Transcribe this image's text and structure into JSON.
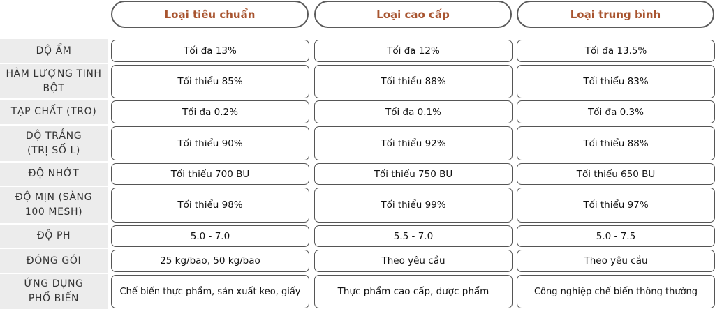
{
  "columns": [
    "Loại tiêu chuẩn",
    "Loại cao cấp",
    "Loại trung bình"
  ],
  "rows": [
    {
      "label": "ĐỘ ẨM",
      "values": [
        "Tối đa 13%",
        "Tối đa 12%",
        "Tối đa 13.5%"
      ]
    },
    {
      "label": "HÀM LƯỢNG TINH BỘT",
      "values": [
        "Tối thiểu 85%",
        "Tối thiểu 88%",
        "Tối thiểu 83%"
      ]
    },
    {
      "label": "TẠP CHẤT (TRO)",
      "values": [
        "Tối đa 0.2%",
        "Tối đa 0.1%",
        "Tối đa 0.3%"
      ]
    },
    {
      "label": "ĐỘ TRẮNG (TRỊ SỐ L)",
      "values": [
        "Tối thiểu 90%",
        "Tối thiểu 92%",
        "Tối thiểu 88%"
      ]
    },
    {
      "label": "ĐỘ NHỚT",
      "values": [
        "Tối thiểu 700 BU",
        "Tối thiểu 750 BU",
        "Tối thiểu 650 BU"
      ]
    },
    {
      "label": "ĐỘ MỊN (SÀNG 100 MESH)",
      "values": [
        "Tối thiểu 98%",
        "Tối thiểu 99%",
        "Tối thiểu 97%"
      ]
    },
    {
      "label": "ĐỘ PH",
      "values": [
        "5.0 - 7.0",
        "5.5 - 7.0",
        "5.0 - 7.5"
      ]
    },
    {
      "label": "ĐÓNG GÓI",
      "values": [
        "25 kg/bao, 50 kg/bao",
        "Theo yêu cầu",
        "Theo yêu cầu"
      ]
    },
    {
      "label": "ỨNG DỤNG PHỔ BIẾN",
      "values": [
        "Chế biến thực phẩm, sản xuất keo, giấy",
        "Thực phẩm cao cấp, dược phẩm",
        "Công nghiệp chế biến thông thường"
      ]
    }
  ],
  "colors": {
    "header_text": "#a8542f",
    "label_bg": "#ececec",
    "border": "#555555"
  }
}
